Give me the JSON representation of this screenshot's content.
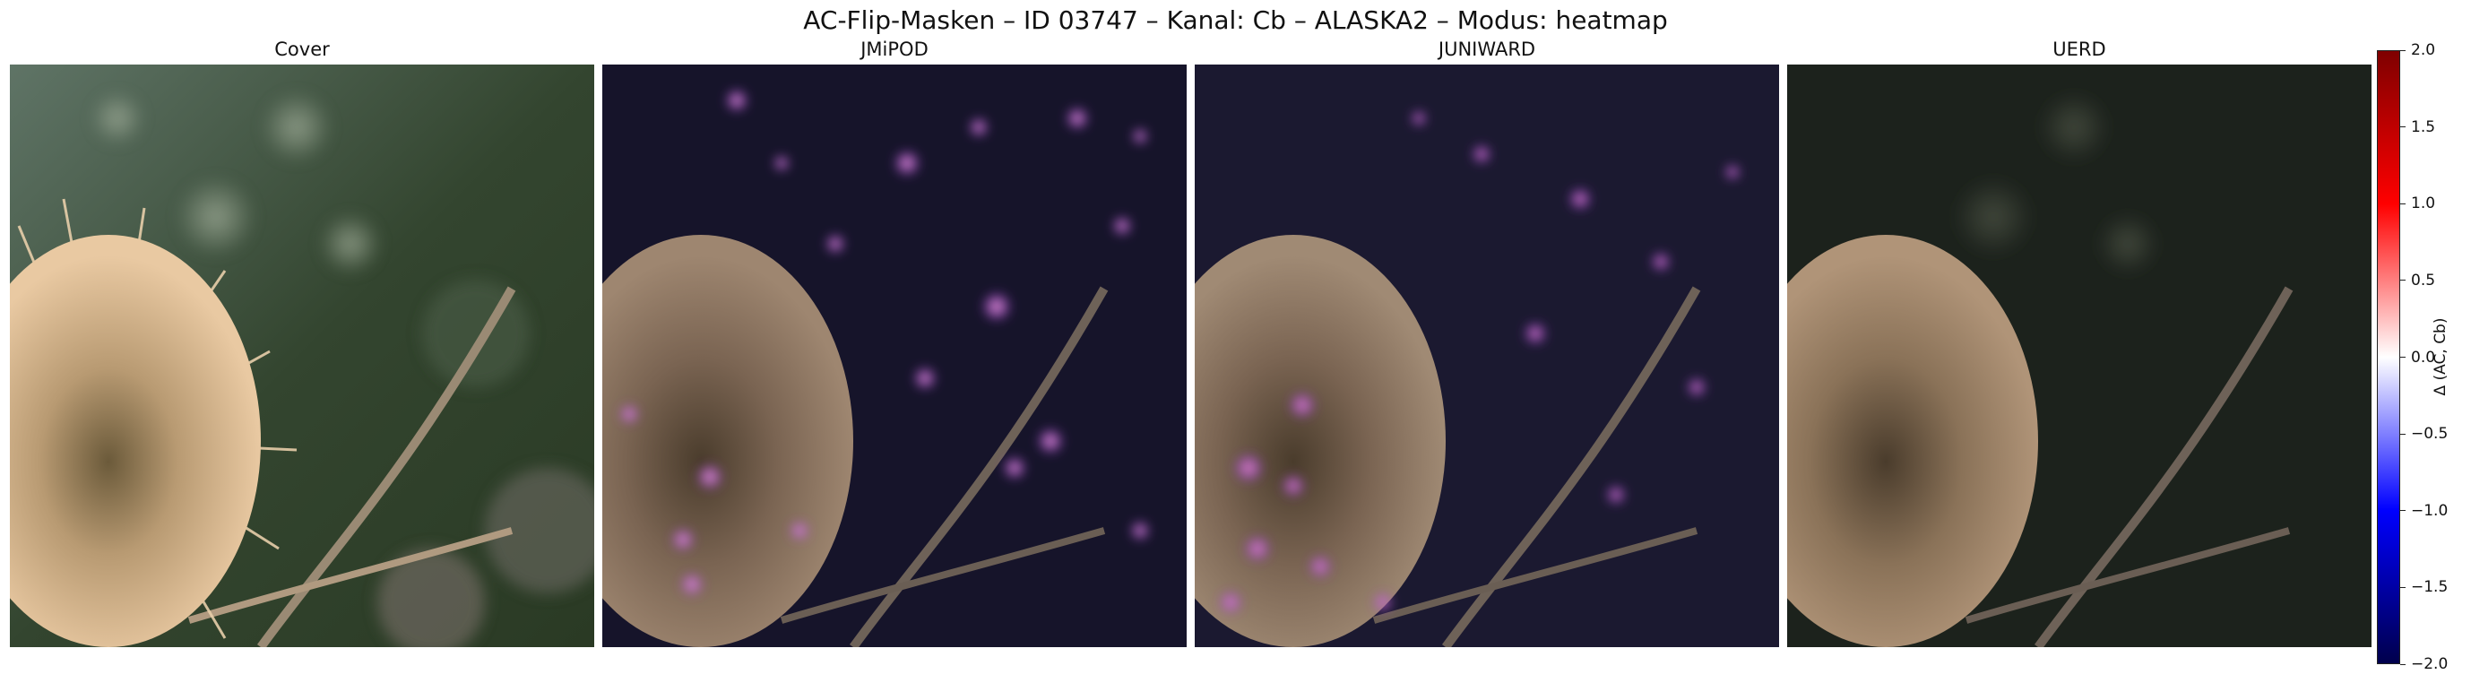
{
  "title": "AC-Flip-Masken – ID 03747 – Kanal: Cb – ALASKA2 – Modus: heatmap",
  "panels": [
    {
      "title": "Cover"
    },
    {
      "title": "JMiPOD"
    },
    {
      "title": "JUNIWARD"
    },
    {
      "title": "UERD"
    }
  ],
  "colorbar": {
    "label": "Δ (AC, Cb)",
    "range": [
      -2.0,
      2.0
    ],
    "ticks": [
      "2.0",
      "1.5",
      "1.0",
      "0.5",
      "0.0",
      "−0.5",
      "−1.0",
      "−1.5",
      "−2.0"
    ],
    "colors": [
      "#00004c",
      "#0000ff",
      "#ffffff",
      "#ff0000",
      "#7f0000"
    ]
  }
}
